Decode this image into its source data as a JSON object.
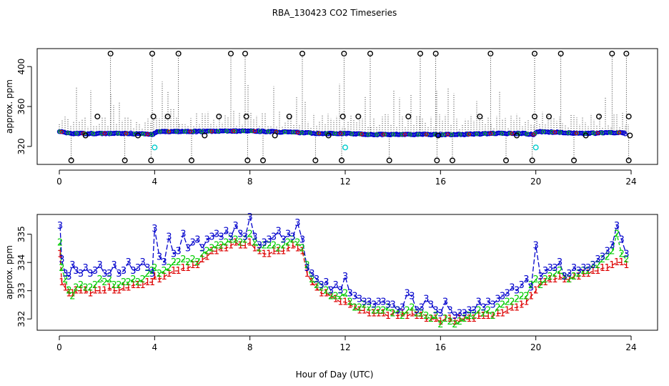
{
  "title": "RBA_130423  CO2 Timeseries",
  "xlabel": "Hour of Day (UTC)",
  "colors": {
    "series_1": "#dd0000",
    "series_2": "#00cc00",
    "series_3": "#0000cc",
    "flag_cyan": "#00cccc",
    "black": "#000000"
  },
  "chart_data": [
    {
      "type": "scatter",
      "xlabel": "",
      "ylabel": "approx. ppm",
      "xlim": [
        0,
        24
      ],
      "ylim": [
        302,
        418
      ],
      "xticks": [
        0,
        4,
        8,
        12,
        16,
        20,
        24
      ],
      "yticks": [
        320,
        360,
        400
      ],
      "grid": false,
      "baseline": [
        {
          "x": 0,
          "y": 335
        },
        {
          "x": 0.5,
          "y": 333
        },
        {
          "x": 1,
          "y": 333
        },
        {
          "x": 2,
          "y": 333
        },
        {
          "x": 3,
          "y": 333
        },
        {
          "x": 3.9,
          "y": 332
        },
        {
          "x": 4.1,
          "y": 335
        },
        {
          "x": 6,
          "y": 335
        },
        {
          "x": 8,
          "y": 335.5
        },
        {
          "x": 10,
          "y": 334
        },
        {
          "x": 11,
          "y": 333
        },
        {
          "x": 12,
          "y": 333
        },
        {
          "x": 13,
          "y": 332
        },
        {
          "x": 14,
          "y": 332
        },
        {
          "x": 16,
          "y": 332
        },
        {
          "x": 17,
          "y": 332
        },
        {
          "x": 18,
          "y": 333
        },
        {
          "x": 19.5,
          "y": 333
        },
        {
          "x": 19.9,
          "y": 332
        },
        {
          "x": 20.1,
          "y": 335
        },
        {
          "x": 22,
          "y": 333
        },
        {
          "x": 23.5,
          "y": 334
        },
        {
          "x": 23.8,
          "y": 333
        }
      ],
      "spike_max": 413,
      "spike_min": 306,
      "high_markers": [
        2.15,
        3.9,
        5.0,
        7.2,
        7.8,
        10.2,
        11.95,
        13.05,
        15.15,
        15.8,
        18.1,
        19.95,
        21.05,
        23.2,
        23.8
      ],
      "low_markers": [
        0.5,
        2.75,
        3.85,
        5.55,
        7.9,
        8.55,
        10.75,
        11.85,
        13.85,
        15.85,
        16.5,
        18.75,
        19.85,
        21.6,
        23.9
      ],
      "mid_markers": [
        {
          "x": 1.6,
          "y": 350
        },
        {
          "x": 3.95,
          "y": 350
        },
        {
          "x": 4.55,
          "y": 350
        },
        {
          "x": 6.7,
          "y": 350
        },
        {
          "x": 7.85,
          "y": 350
        },
        {
          "x": 9.65,
          "y": 350
        },
        {
          "x": 11.9,
          "y": 350
        },
        {
          "x": 12.55,
          "y": 350
        },
        {
          "x": 14.65,
          "y": 350
        },
        {
          "x": 17.65,
          "y": 350
        },
        {
          "x": 19.95,
          "y": 350
        },
        {
          "x": 20.55,
          "y": 350
        },
        {
          "x": 22.65,
          "y": 350
        },
        {
          "x": 23.9,
          "y": 350
        },
        {
          "x": 1.1,
          "y": 331
        },
        {
          "x": 3.3,
          "y": 331
        },
        {
          "x": 6.1,
          "y": 331
        },
        {
          "x": 9.05,
          "y": 331
        },
        {
          "x": 11.3,
          "y": 331
        },
        {
          "x": 15.9,
          "y": 331
        },
        {
          "x": 19.2,
          "y": 331
        },
        {
          "x": 22.1,
          "y": 331
        },
        {
          "x": 23.95,
          "y": 331
        }
      ],
      "cyan_markers": [
        {
          "x": 4.0,
          "y": 319
        },
        {
          "x": 12.0,
          "y": 319
        },
        {
          "x": 20.0,
          "y": 319
        }
      ]
    },
    {
      "type": "line",
      "xlabel": "Hour of Day (UTC)",
      "ylabel": "approx. ppm",
      "xlim": [
        0,
        24
      ],
      "ylim": [
        331.6,
        335.7
      ],
      "xticks": [
        0,
        4,
        8,
        12,
        16,
        20,
        24
      ],
      "yticks": [
        332,
        333,
        334,
        335
      ],
      "grid": false,
      "marker_labels": [
        "1",
        "2",
        "3"
      ],
      "x": [
        0.03,
        0.1,
        0.25,
        0.4,
        0.55,
        0.7,
        0.9,
        1.1,
        1.3,
        1.5,
        1.7,
        1.9,
        2.1,
        2.3,
        2.5,
        2.7,
        2.9,
        3.1,
        3.3,
        3.5,
        3.7,
        3.9,
        4.0,
        4.2,
        4.4,
        4.6,
        4.8,
        5.0,
        5.2,
        5.4,
        5.6,
        5.8,
        6.0,
        6.2,
        6.4,
        6.6,
        6.8,
        7.0,
        7.2,
        7.4,
        7.6,
        7.8,
        8.0,
        8.2,
        8.4,
        8.6,
        8.8,
        9.0,
        9.2,
        9.4,
        9.6,
        9.8,
        10.0,
        10.2,
        10.4,
        10.6,
        10.8,
        11.0,
        11.2,
        11.4,
        11.6,
        11.8,
        12.0,
        12.2,
        12.4,
        12.6,
        12.8,
        13.0,
        13.2,
        13.4,
        13.6,
        13.8,
        14.0,
        14.2,
        14.4,
        14.6,
        14.8,
        15.0,
        15.2,
        15.4,
        15.6,
        15.8,
        16.0,
        16.2,
        16.4,
        16.6,
        16.8,
        17.0,
        17.2,
        17.4,
        17.6,
        17.8,
        18.0,
        18.2,
        18.4,
        18.6,
        18.8,
        19.0,
        19.2,
        19.4,
        19.6,
        19.8,
        20.0,
        20.2,
        20.4,
        20.6,
        20.8,
        21.0,
        21.2,
        21.4,
        21.6,
        21.8,
        22.0,
        22.2,
        22.4,
        22.6,
        22.8,
        23.0,
        23.2,
        23.4,
        23.6,
        23.8
      ],
      "series": [
        {
          "name": "1",
          "values": [
            334.3,
            333.3,
            333.1,
            332.9,
            332.9,
            333.0,
            333.0,
            333.0,
            332.9,
            333.0,
            333.0,
            333.0,
            333.1,
            333.0,
            333.0,
            333.1,
            333.1,
            333.2,
            333.2,
            333.2,
            333.3,
            333.3,
            333.5,
            333.4,
            333.5,
            333.6,
            333.7,
            333.7,
            333.8,
            333.8,
            333.9,
            333.9,
            334.1,
            334.2,
            334.4,
            334.4,
            334.5,
            334.5,
            334.6,
            334.7,
            334.6,
            334.6,
            334.7,
            334.5,
            334.4,
            334.3,
            334.3,
            334.4,
            334.4,
            334.4,
            334.5,
            334.6,
            334.5,
            334.4,
            333.6,
            333.3,
            333.1,
            332.9,
            332.9,
            332.8,
            332.7,
            332.6,
            332.6,
            332.5,
            332.4,
            332.3,
            332.3,
            332.2,
            332.2,
            332.2,
            332.2,
            332.1,
            332.2,
            332.1,
            332.2,
            332.1,
            332.2,
            332.1,
            332.1,
            332.0,
            332.0,
            332.0,
            331.9,
            332.0,
            332.0,
            331.9,
            332.0,
            332.0,
            332.0,
            332.0,
            332.1,
            332.1,
            332.1,
            332.1,
            332.2,
            332.2,
            332.3,
            332.4,
            332.4,
            332.5,
            332.6,
            332.8,
            333.0,
            333.3,
            333.3,
            333.4,
            333.4,
            333.5,
            333.4,
            333.4,
            333.5,
            333.5,
            333.6,
            333.6,
            333.7,
            333.7,
            333.8,
            333.8,
            333.9,
            334.0,
            334.0,
            333.9
          ]
        },
        {
          "name": "2",
          "values": [
            334.7,
            333.8,
            333.4,
            333.0,
            332.8,
            333.1,
            333.2,
            333.1,
            333.1,
            333.2,
            333.4,
            333.3,
            333.4,
            333.2,
            333.2,
            333.3,
            333.3,
            333.4,
            333.3,
            333.4,
            333.6,
            333.7,
            333.8,
            333.6,
            333.7,
            333.8,
            334.0,
            334.0,
            334.1,
            334.0,
            334.1,
            334.0,
            334.3,
            334.4,
            334.5,
            334.6,
            334.6,
            334.7,
            334.8,
            334.8,
            334.7,
            334.8,
            335.0,
            334.7,
            334.5,
            334.6,
            334.6,
            334.6,
            334.5,
            334.6,
            334.7,
            334.8,
            334.7,
            334.5,
            333.9,
            333.4,
            333.2,
            333.1,
            333.0,
            332.8,
            332.8,
            332.8,
            332.9,
            332.6,
            332.4,
            332.4,
            332.5,
            332.4,
            332.3,
            332.3,
            332.3,
            332.4,
            332.2,
            332.3,
            332.1,
            332.3,
            332.4,
            332.2,
            332.2,
            332.1,
            332.0,
            332.1,
            331.8,
            332.0,
            331.9,
            331.8,
            331.9,
            332.0,
            332.1,
            332.1,
            332.3,
            332.2,
            332.3,
            332.1,
            332.4,
            332.5,
            332.6,
            332.6,
            332.7,
            332.8,
            332.8,
            333.2,
            333.4,
            333.2,
            333.4,
            333.5,
            333.6,
            333.7,
            333.5,
            333.4,
            333.5,
            333.6,
            333.7,
            333.7,
            333.9,
            333.9,
            334.1,
            334.2,
            334.4,
            335.0,
            334.3,
            334.1
          ]
        },
        {
          "name": "3",
          "values": [
            335.3,
            334.1,
            333.6,
            333.5,
            333.9,
            333.7,
            333.6,
            333.8,
            333.6,
            333.7,
            333.9,
            333.6,
            333.6,
            333.9,
            333.6,
            333.7,
            334.0,
            333.7,
            333.8,
            334.0,
            333.8,
            333.6,
            335.2,
            334.2,
            334.0,
            334.9,
            334.3,
            334.4,
            335.0,
            334.5,
            334.7,
            334.8,
            334.5,
            334.8,
            334.9,
            335.0,
            334.9,
            335.1,
            334.9,
            335.3,
            335.0,
            334.9,
            335.6,
            334.9,
            334.6,
            334.7,
            334.8,
            334.9,
            335.1,
            334.8,
            335.0,
            334.9,
            335.4,
            334.8,
            333.8,
            333.6,
            333.4,
            333.2,
            333.3,
            333.0,
            333.2,
            333.0,
            333.5,
            332.9,
            332.8,
            332.7,
            332.6,
            332.6,
            332.5,
            332.6,
            332.6,
            332.5,
            332.5,
            332.3,
            332.4,
            332.9,
            332.8,
            332.3,
            332.4,
            332.7,
            332.5,
            332.3,
            332.2,
            332.6,
            332.3,
            332.1,
            332.2,
            332.2,
            332.3,
            332.3,
            332.6,
            332.4,
            332.6,
            332.5,
            332.7,
            332.8,
            332.9,
            333.1,
            333.0,
            333.2,
            333.4,
            333.1,
            334.6,
            333.5,
            333.7,
            333.8,
            333.8,
            334.0,
            333.5,
            333.6,
            333.8,
            333.7,
            333.8,
            333.8,
            333.9,
            334.1,
            334.2,
            334.4,
            334.6,
            335.3,
            334.8,
            334.3
          ]
        }
      ]
    }
  ]
}
